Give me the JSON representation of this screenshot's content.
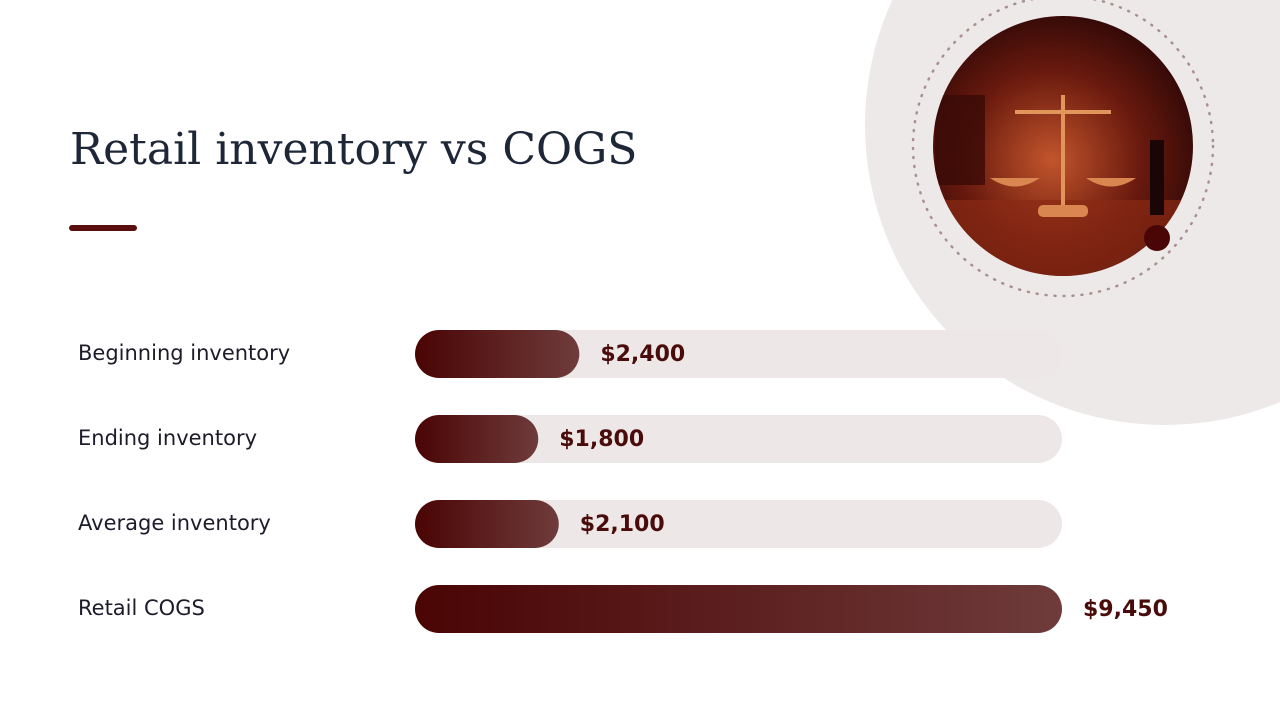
{
  "chart_data": {
    "type": "bar",
    "orientation": "horizontal",
    "title": "Retail inventory vs COGS",
    "categories": [
      "Beginning inventory",
      "Ending inventory",
      "Average inventory",
      "Retail COGS"
    ],
    "values": [
      2400,
      1800,
      2100,
      9450
    ],
    "value_labels": [
      "$2,400",
      "$1,800",
      "$2,100",
      "$9,450"
    ],
    "color": "#4a0606"
  }
}
